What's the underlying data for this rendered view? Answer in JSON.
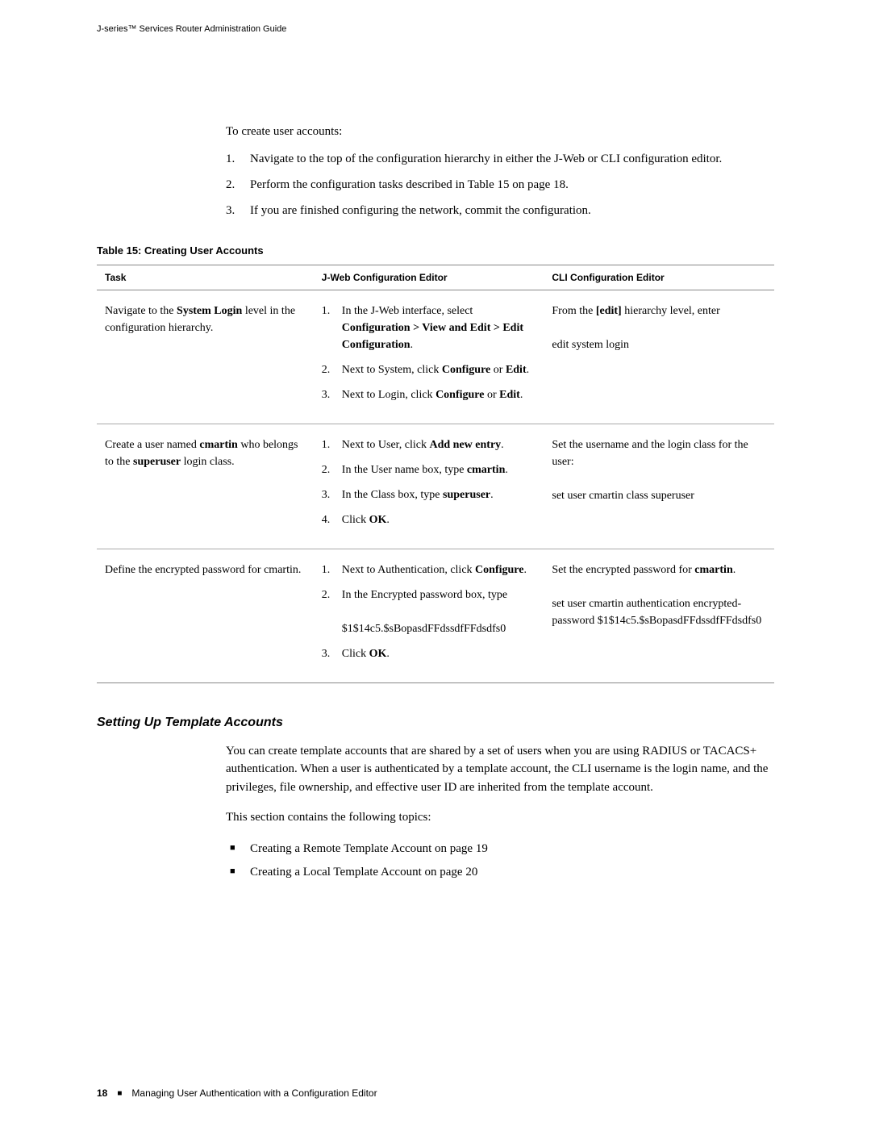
{
  "header": {
    "title": "J-series™ Services Router Administration Guide"
  },
  "intro": {
    "lead": "To create user accounts:",
    "steps": [
      "Navigate to the top of the configuration hierarchy in either the J-Web or CLI configuration editor.",
      "Perform the configuration tasks described in Table 15 on page 18.",
      "If you are finished configuring the network, commit the configuration."
    ]
  },
  "table": {
    "title": "Table 15: Creating User Accounts",
    "headers": {
      "task": "Task",
      "jweb": "J-Web Configuration Editor",
      "cli": "CLI Configuration Editor"
    },
    "rows": [
      {
        "task_html": "Navigate to the <span class=\"bold\">System Login</span> level in the configuration hierarchy.",
        "jweb_steps": [
          "In the J-Web interface, select <span class=\"bold\">Configuration > View and Edit > Edit Configuration</span>.",
          "Next to System, click <span class=\"bold\">Configure</span> or <span class=\"bold\">Edit</span>.",
          "Next to Login, click <span class=\"bold\">Configure</span> or <span class=\"bold\">Edit</span>."
        ],
        "cli_html": "From the <span class=\"bold\">[edit]</span> hierarchy level, enter<br><br>edit system login"
      },
      {
        "task_html": "Create a user named <span class=\"bold\">cmartin</span> who belongs to the <span class=\"bold\">superuser</span> login class.",
        "jweb_steps": [
          "Next to User, click <span class=\"bold\">Add new entry</span>.",
          "In the User name box, type <span class=\"bold\">cmartin</span>.",
          "In the Class box, type <span class=\"bold\">superuser</span>.",
          "Click <span class=\"bold\">OK</span>."
        ],
        "cli_html": "Set the username and the login class for the user:<br><br>set user cmartin class superuser"
      },
      {
        "task_html": "Define the encrypted password for cmartin.",
        "jweb_steps": [
          "Next to Authentication, click <span class=\"bold\">Configure</span>.",
          "In the Encrypted password box, type<br><br>$1$14c5.$sBopasdFFdssdfFFdsdfs0",
          "Click <span class=\"bold\">OK</span>."
        ],
        "cli_html": "Set the encrypted password for <span class=\"bold\">cmartin</span>.<br><br>set user cmartin authentication encrypted-password $1$14c5.$sBopasdFFdssdfFFdsdfs0"
      }
    ]
  },
  "section": {
    "heading": "Setting Up Template Accounts",
    "para1": "You can create template accounts that are shared by a set of users when you are using RADIUS or TACACS+ authentication. When a user is authenticated by a template account, the CLI username is the login name, and the privileges, file ownership, and effective user ID are inherited from the template account.",
    "para2": "This section contains the following topics:",
    "bullets": [
      "Creating a Remote Template Account on page 19",
      "Creating a Local Template Account on page 20"
    ]
  },
  "footer": {
    "page": "18",
    "text": "Managing User Authentication with a Configuration Editor"
  }
}
